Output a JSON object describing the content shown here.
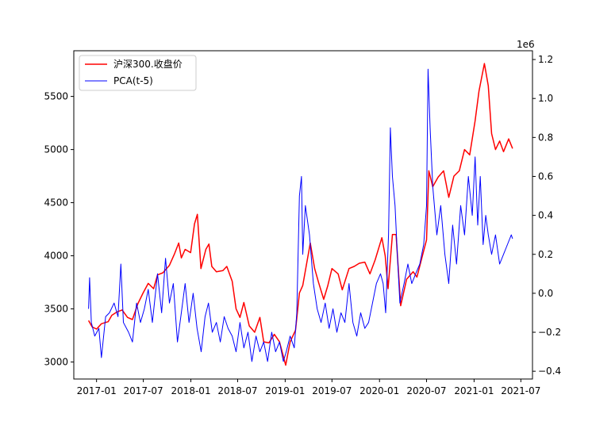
{
  "chart_data": {
    "type": "line",
    "title": "",
    "xlabel": "",
    "ylabel_left": "",
    "ylabel_right": "",
    "right_axis_offset_label": "1e6",
    "legend_position": "top-left",
    "grid": false,
    "x_ticks": [
      "2017-01",
      "2017-07",
      "2018-01",
      "2018-07",
      "2019-01",
      "2019-07",
      "2020-01",
      "2020-07",
      "2021-01",
      "2021-07"
    ],
    "y_left_ticks": [
      3000,
      3500,
      4000,
      4500,
      5000,
      5500
    ],
    "y_right_ticks": [
      "−0.4",
      "−0.2",
      "0.0",
      "0.2",
      "0.4",
      "0.6",
      "0.8",
      "1.0",
      "1.2"
    ],
    "xlim": [
      "2016-10-05",
      "2021-08-15"
    ],
    "ylim_left": [
      2840,
      5930
    ],
    "ylim_right": [
      -0.44,
      1.245
    ],
    "series": [
      {
        "name": "沪深300.收盘价",
        "axis": "left",
        "color": "#ff0000",
        "points": [
          [
            "2016-12-01",
            3390
          ],
          [
            "2016-12-15",
            3330
          ],
          [
            "2017-01-01",
            3310
          ],
          [
            "2017-01-20",
            3360
          ],
          [
            "2017-02-15",
            3380
          ],
          [
            "2017-03-01",
            3440
          ],
          [
            "2017-03-20",
            3470
          ],
          [
            "2017-04-10",
            3490
          ],
          [
            "2017-05-01",
            3420
          ],
          [
            "2017-05-20",
            3400
          ],
          [
            "2017-06-10",
            3550
          ],
          [
            "2017-06-30",
            3650
          ],
          [
            "2017-07-20",
            3740
          ],
          [
            "2017-08-10",
            3690
          ],
          [
            "2017-08-25",
            3820
          ],
          [
            "2017-09-15",
            3840
          ],
          [
            "2017-10-10",
            3910
          ],
          [
            "2017-10-30",
            4020
          ],
          [
            "2017-11-15",
            4120
          ],
          [
            "2017-11-25",
            3980
          ],
          [
            "2017-12-10",
            4060
          ],
          [
            "2017-12-31",
            4030
          ],
          [
            "2018-01-15",
            4300
          ],
          [
            "2018-01-26",
            4390
          ],
          [
            "2018-02-09",
            3880
          ],
          [
            "2018-02-28",
            4060
          ],
          [
            "2018-03-12",
            4110
          ],
          [
            "2018-03-23",
            3900
          ],
          [
            "2018-04-10",
            3850
          ],
          [
            "2018-05-05",
            3860
          ],
          [
            "2018-05-20",
            3900
          ],
          [
            "2018-06-10",
            3760
          ],
          [
            "2018-06-25",
            3500
          ],
          [
            "2018-07-10",
            3420
          ],
          [
            "2018-07-25",
            3560
          ],
          [
            "2018-08-15",
            3340
          ],
          [
            "2018-09-05",
            3280
          ],
          [
            "2018-09-25",
            3420
          ],
          [
            "2018-10-10",
            3190
          ],
          [
            "2018-10-30",
            3180
          ],
          [
            "2018-11-20",
            3260
          ],
          [
            "2018-12-10",
            3190
          ],
          [
            "2019-01-03",
            2970
          ],
          [
            "2019-01-20",
            3190
          ],
          [
            "2019-02-10",
            3300
          ],
          [
            "2019-02-25",
            3650
          ],
          [
            "2019-03-10",
            3720
          ],
          [
            "2019-04-08",
            4120
          ],
          [
            "2019-04-25",
            3880
          ],
          [
            "2019-05-10",
            3750
          ],
          [
            "2019-05-30",
            3590
          ],
          [
            "2019-06-15",
            3720
          ],
          [
            "2019-07-01",
            3880
          ],
          [
            "2019-07-25",
            3830
          ],
          [
            "2019-08-10",
            3680
          ],
          [
            "2019-09-05",
            3880
          ],
          [
            "2019-09-25",
            3900
          ],
          [
            "2019-10-15",
            3930
          ],
          [
            "2019-11-05",
            3940
          ],
          [
            "2019-11-25",
            3830
          ],
          [
            "2019-12-15",
            3960
          ],
          [
            "2020-01-10",
            4170
          ],
          [
            "2020-01-23",
            4000
          ],
          [
            "2020-02-03",
            3690
          ],
          [
            "2020-02-20",
            4200
          ],
          [
            "2020-03-05",
            4200
          ],
          [
            "2020-03-23",
            3530
          ],
          [
            "2020-04-15",
            3780
          ],
          [
            "2020-05-10",
            3850
          ],
          [
            "2020-05-25",
            3800
          ],
          [
            "2020-06-15",
            4000
          ],
          [
            "2020-07-01",
            4150
          ],
          [
            "2020-07-10",
            4800
          ],
          [
            "2020-07-25",
            4650
          ],
          [
            "2020-08-15",
            4740
          ],
          [
            "2020-09-05",
            4800
          ],
          [
            "2020-09-25",
            4550
          ],
          [
            "2020-10-15",
            4750
          ],
          [
            "2020-11-05",
            4800
          ],
          [
            "2020-11-25",
            5000
          ],
          [
            "2020-12-15",
            4950
          ],
          [
            "2021-01-05",
            5270
          ],
          [
            "2021-01-20",
            5550
          ],
          [
            "2021-02-10",
            5810
          ],
          [
            "2021-02-25",
            5600
          ],
          [
            "2021-03-10",
            5150
          ],
          [
            "2021-03-25",
            5000
          ],
          [
            "2021-04-10",
            5080
          ],
          [
            "2021-04-25",
            4980
          ],
          [
            "2021-05-15",
            5100
          ],
          [
            "2021-05-30",
            5010
          ]
        ]
      },
      {
        "name": "PCA(t-5)",
        "axis": "right",
        "color": "#0000ff",
        "points": [
          [
            "2016-12-01",
            -0.08
          ],
          [
            "2016-12-05",
            0.08
          ],
          [
            "2016-12-12",
            -0.15
          ],
          [
            "2016-12-25",
            -0.22
          ],
          [
            "2017-01-10",
            -0.18
          ],
          [
            "2017-01-20",
            -0.33
          ],
          [
            "2017-02-05",
            -0.12
          ],
          [
            "2017-02-20",
            -0.1
          ],
          [
            "2017-03-10",
            -0.05
          ],
          [
            "2017-03-25",
            -0.12
          ],
          [
            "2017-04-05",
            0.15
          ],
          [
            "2017-04-15",
            -0.15
          ],
          [
            "2017-05-05",
            -0.2
          ],
          [
            "2017-05-20",
            -0.25
          ],
          [
            "2017-06-05",
            -0.05
          ],
          [
            "2017-06-20",
            -0.15
          ],
          [
            "2017-07-05",
            -0.08
          ],
          [
            "2017-07-20",
            0.02
          ],
          [
            "2017-08-05",
            -0.15
          ],
          [
            "2017-08-25",
            0.1
          ],
          [
            "2017-09-10",
            -0.1
          ],
          [
            "2017-09-25",
            0.18
          ],
          [
            "2017-10-10",
            -0.05
          ],
          [
            "2017-10-25",
            0.05
          ],
          [
            "2017-11-10",
            -0.25
          ],
          [
            "2017-11-25",
            -0.1
          ],
          [
            "2017-12-10",
            0.05
          ],
          [
            "2017-12-25",
            -0.15
          ],
          [
            "2018-01-10",
            0.0
          ],
          [
            "2018-01-25",
            -0.18
          ],
          [
            "2018-02-10",
            -0.3
          ],
          [
            "2018-02-25",
            -0.12
          ],
          [
            "2018-03-10",
            -0.05
          ],
          [
            "2018-03-25",
            -0.2
          ],
          [
            "2018-04-10",
            -0.15
          ],
          [
            "2018-04-25",
            -0.25
          ],
          [
            "2018-05-10",
            -0.12
          ],
          [
            "2018-05-25",
            -0.18
          ],
          [
            "2018-06-10",
            -0.22
          ],
          [
            "2018-06-25",
            -0.3
          ],
          [
            "2018-07-10",
            -0.15
          ],
          [
            "2018-07-25",
            -0.28
          ],
          [
            "2018-08-10",
            -0.2
          ],
          [
            "2018-08-25",
            -0.35
          ],
          [
            "2018-09-10",
            -0.22
          ],
          [
            "2018-09-25",
            -0.3
          ],
          [
            "2018-10-10",
            -0.25
          ],
          [
            "2018-10-25",
            -0.35
          ],
          [
            "2018-11-10",
            -0.2
          ],
          [
            "2018-11-25",
            -0.3
          ],
          [
            "2018-12-10",
            -0.25
          ],
          [
            "2018-12-25",
            -0.35
          ],
          [
            "2019-01-05",
            -0.3
          ],
          [
            "2019-01-20",
            -0.22
          ],
          [
            "2019-02-05",
            -0.28
          ],
          [
            "2019-02-15",
            -0.1
          ],
          [
            "2019-02-25",
            0.5
          ],
          [
            "2019-03-05",
            0.6
          ],
          [
            "2019-03-10",
            0.2
          ],
          [
            "2019-03-20",
            0.45
          ],
          [
            "2019-04-05",
            0.3
          ],
          [
            "2019-04-20",
            0.05
          ],
          [
            "2019-05-05",
            -0.08
          ],
          [
            "2019-05-20",
            -0.15
          ],
          [
            "2019-06-05",
            -0.05
          ],
          [
            "2019-06-20",
            -0.18
          ],
          [
            "2019-07-05",
            -0.08
          ],
          [
            "2019-07-20",
            -0.2
          ],
          [
            "2019-08-05",
            -0.1
          ],
          [
            "2019-08-20",
            -0.15
          ],
          [
            "2019-09-05",
            0.05
          ],
          [
            "2019-09-20",
            -0.15
          ],
          [
            "2019-10-05",
            -0.22
          ],
          [
            "2019-10-20",
            -0.1
          ],
          [
            "2019-11-05",
            -0.18
          ],
          [
            "2019-11-20",
            -0.15
          ],
          [
            "2019-12-05",
            -0.05
          ],
          [
            "2019-12-20",
            0.05
          ],
          [
            "2020-01-05",
            0.1
          ],
          [
            "2020-01-15",
            0.05
          ],
          [
            "2020-01-25",
            -0.1
          ],
          [
            "2020-02-05",
            0.3
          ],
          [
            "2020-02-12",
            0.85
          ],
          [
            "2020-02-20",
            0.6
          ],
          [
            "2020-03-01",
            0.45
          ],
          [
            "2020-03-10",
            0.2
          ],
          [
            "2020-03-20",
            -0.05
          ],
          [
            "2020-04-05",
            0.05
          ],
          [
            "2020-04-20",
            0.15
          ],
          [
            "2020-05-05",
            0.05
          ],
          [
            "2020-05-20",
            0.1
          ],
          [
            "2020-06-05",
            0.15
          ],
          [
            "2020-06-20",
            0.25
          ],
          [
            "2020-07-01",
            0.45
          ],
          [
            "2020-07-07",
            1.15
          ],
          [
            "2020-07-15",
            0.85
          ],
          [
            "2020-07-25",
            0.55
          ],
          [
            "2020-08-10",
            0.3
          ],
          [
            "2020-08-25",
            0.45
          ],
          [
            "2020-09-10",
            0.2
          ],
          [
            "2020-09-25",
            0.05
          ],
          [
            "2020-10-10",
            0.35
          ],
          [
            "2020-10-25",
            0.15
          ],
          [
            "2020-11-10",
            0.45
          ],
          [
            "2020-11-25",
            0.3
          ],
          [
            "2020-12-10",
            0.6
          ],
          [
            "2020-12-25",
            0.4
          ],
          [
            "2021-01-05",
            0.7
          ],
          [
            "2021-01-15",
            0.35
          ],
          [
            "2021-01-25",
            0.6
          ],
          [
            "2021-02-05",
            0.25
          ],
          [
            "2021-02-15",
            0.4
          ],
          [
            "2021-02-25",
            0.3
          ],
          [
            "2021-03-10",
            0.2
          ],
          [
            "2021-03-25",
            0.3
          ],
          [
            "2021-04-10",
            0.15
          ],
          [
            "2021-04-25",
            0.2
          ],
          [
            "2021-05-10",
            0.25
          ],
          [
            "2021-05-25",
            0.3
          ],
          [
            "2021-05-30",
            0.28
          ]
        ]
      }
    ]
  }
}
